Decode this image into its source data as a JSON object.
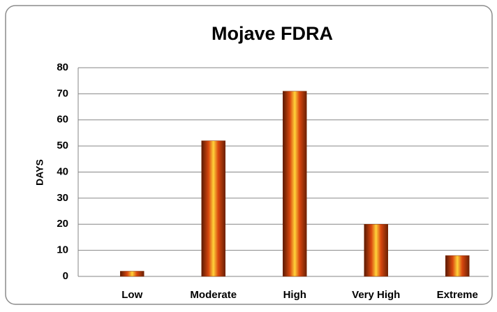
{
  "chart_data": {
    "type": "bar",
    "title": "Mojave FDRA",
    "y_label": "DAYS",
    "categories": [
      "Low",
      "Moderate",
      "High",
      "Very High",
      "Extreme"
    ],
    "values": [
      2,
      52,
      71,
      20,
      8
    ],
    "color": "#d9480f",
    "ylim": [
      0,
      80
    ],
    "yticks": [
      0,
      10,
      20,
      30,
      40,
      50,
      60,
      70,
      80
    ],
    "grid": true
  }
}
